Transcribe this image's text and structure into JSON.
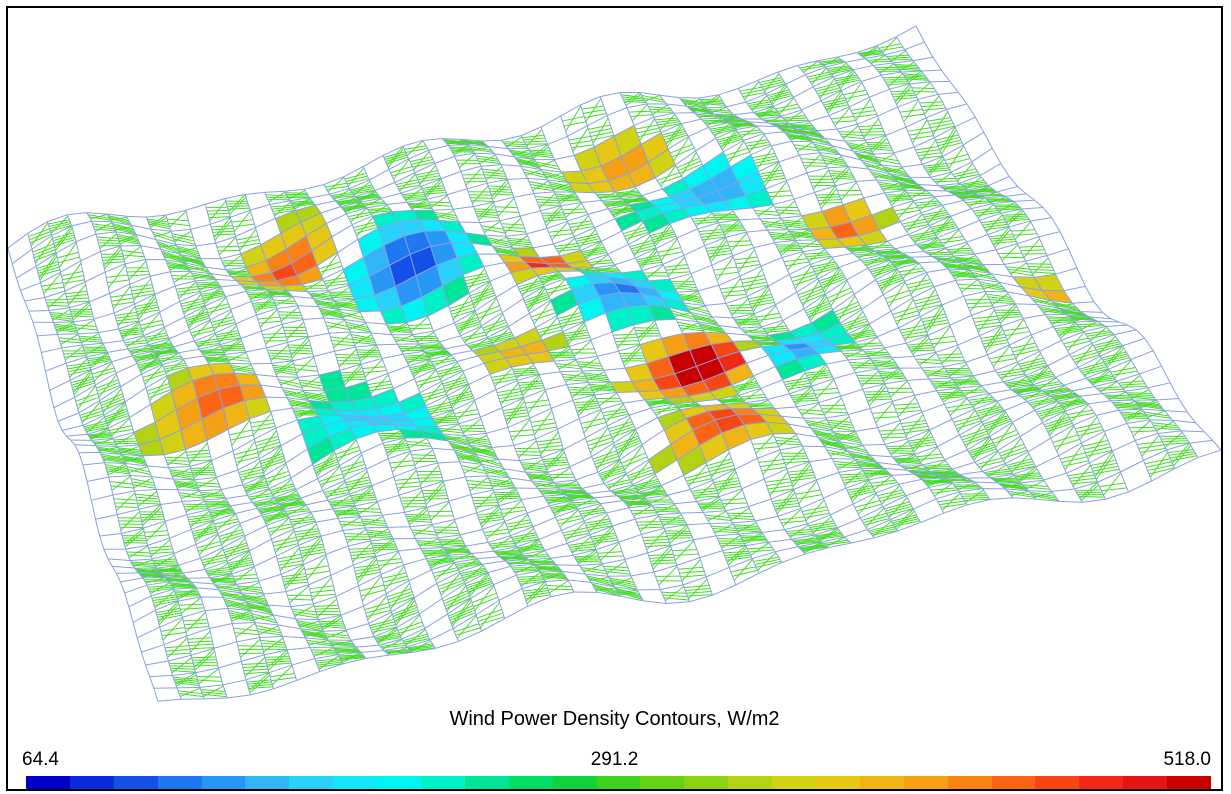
{
  "plot": {
    "title": "Wind Power Density Contours, W/m2",
    "legend": {
      "min_label": "64.4",
      "mid_label": "291.2",
      "max_label": "518.0",
      "min": 64.4,
      "max": 518.0,
      "colors": [
        "#0000c8",
        "#0a28dc",
        "#1450e6",
        "#1e78f0",
        "#2896f5",
        "#32b4f8",
        "#28d2fa",
        "#14e6fa",
        "#00f5f0",
        "#00f0c8",
        "#00e696",
        "#00dc64",
        "#14d23c",
        "#3cd21e",
        "#64d214",
        "#8cd214",
        "#b4d214",
        "#d2d214",
        "#e6c814",
        "#f0b414",
        "#f5a014",
        "#fa8214",
        "#fa6414",
        "#f54614",
        "#f02814",
        "#e61414",
        "#c80000"
      ]
    },
    "colors": {
      "mesh_line": "#8aa0e6",
      "contour_line": "#46dc28",
      "frame": "#000000"
    }
  }
}
